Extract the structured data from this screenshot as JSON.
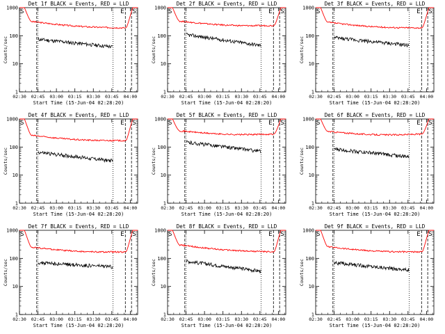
{
  "chart_data": [
    {
      "type": "line",
      "title": "Det 1f BLACK = Events, RED = LLD",
      "xlabel": "Start Time (15-Jun-04 02:28:20)",
      "ylabel": "Counts/sec",
      "yscale": "log",
      "ylim": [
        1,
        1000
      ],
      "xticks": [
        "02:30",
        "02:45",
        "03:00",
        "03:15",
        "03:30",
        "03:45",
        "04:00"
      ],
      "yticks": [
        "1",
        "10",
        "100",
        "1000"
      ],
      "markers": [
        "S",
        "E",
        "S"
      ],
      "red_level": 220,
      "red_start": 320,
      "red_end": 190,
      "black_start": 75,
      "black_end": 40
    },
    {
      "type": "line",
      "title": "Det 2f BLACK = Events, RED = LLD",
      "xlabel": "Start Time (15-Jun-04 02:28:20)",
      "ylabel": "Counts/sec",
      "yscale": "log",
      "ylim": [
        1,
        1000
      ],
      "xticks": [
        "02:30",
        "02:45",
        "03:00",
        "03:15",
        "03:30",
        "03:45",
        "04:00"
      ],
      "yticks": [
        "1",
        "10",
        "100",
        "1000"
      ],
      "markers": [
        "S",
        "E",
        "S"
      ],
      "red_level": 260,
      "red_start": 330,
      "red_end": 230,
      "black_start": 110,
      "black_end": 45
    },
    {
      "type": "line",
      "title": "Det 3f BLACK = Events, RED = LLD",
      "xlabel": "Start Time (15-Jun-04 02:28:20)",
      "ylabel": "Counts/sec",
      "yscale": "log",
      "ylim": [
        1,
        1000
      ],
      "xticks": [
        "02:30",
        "02:45",
        "03:00",
        "03:15",
        "03:30",
        "03:45",
        "04:00"
      ],
      "yticks": [
        "1",
        "10",
        "100",
        "1000"
      ],
      "markers": [
        "S",
        "E",
        "S"
      ],
      "red_level": 220,
      "red_start": 300,
      "red_end": 190,
      "black_start": 85,
      "black_end": 45
    },
    {
      "type": "line",
      "title": "Det 4f BLACK = Events, RED = LLD",
      "xlabel": "Start Time (15-Jun-04 02:28:20)",
      "ylabel": "Counts/sec",
      "yscale": "log",
      "ylim": [
        1,
        1000
      ],
      "xticks": [
        "02:30",
        "02:45",
        "03:00",
        "03:15",
        "03:30",
        "03:45",
        "04:00"
      ],
      "yticks": [
        "1",
        "10",
        "100",
        "1000"
      ],
      "markers": [
        "S",
        "E",
        "S"
      ],
      "red_level": 180,
      "red_start": 260,
      "red_end": 170,
      "black_start": 65,
      "black_end": 32
    },
    {
      "type": "line",
      "title": "Det 5f BLACK = Events, RED = LLD",
      "xlabel": "Start Time (15-Jun-04 02:28:20)",
      "ylabel": "Counts/sec",
      "yscale": "log",
      "ylim": [
        1,
        1000
      ],
      "xticks": [
        "02:30",
        "02:45",
        "03:00",
        "03:15",
        "03:30",
        "03:45",
        "04:00"
      ],
      "yticks": [
        "1",
        "10",
        "100",
        "1000"
      ],
      "markers": [
        "S",
        "E",
        "S"
      ],
      "red_level": 330,
      "red_start": 380,
      "red_end": 290,
      "black_start": 150,
      "black_end": 70
    },
    {
      "type": "line",
      "title": "Det 6f BLACK = Events, RED = LLD",
      "xlabel": "Start Time (15-Jun-04 02:28:20)",
      "ylabel": "Counts/sec",
      "yscale": "log",
      "ylim": [
        1,
        1000
      ],
      "xticks": [
        "02:30",
        "02:45",
        "03:00",
        "03:15",
        "03:30",
        "03:45",
        "04:00"
      ],
      "yticks": [
        "1",
        "10",
        "100",
        "1000"
      ],
      "markers": [
        "S",
        "E",
        "S"
      ],
      "red_level": 300,
      "red_start": 360,
      "red_end": 290,
      "black_start": 85,
      "black_end": 45
    },
    {
      "type": "line",
      "title": "Det 7f BLACK = Events, RED = LLD",
      "xlabel": "Start Time (15-Jun-04 02:28:20)",
      "ylabel": "Counts/sec",
      "yscale": "log",
      "ylim": [
        1,
        1000
      ],
      "xticks": [
        "02:30",
        "02:45",
        "03:00",
        "03:15",
        "03:30",
        "03:45",
        "04:00"
      ],
      "yticks": [
        "1",
        "10",
        "100",
        "1000"
      ],
      "markers": [
        "S",
        "E",
        "S"
      ],
      "red_level": 160,
      "red_start": 250,
      "red_end": 170,
      "black_start": 70,
      "black_end": 50
    },
    {
      "type": "line",
      "title": "Det 8f BLACK = Events, RED = LLD",
      "xlabel": "Start Time (15-Jun-04 02:28:20)",
      "ylabel": "Counts/sec",
      "yscale": "log",
      "ylim": [
        1,
        1000
      ],
      "xticks": [
        "02:30",
        "02:45",
        "03:00",
        "03:15",
        "03:30",
        "03:45",
        "04:00"
      ],
      "yticks": [
        "1",
        "10",
        "100",
        "1000"
      ],
      "markers": [
        "S",
        "E",
        "S"
      ],
      "red_level": 240,
      "red_start": 300,
      "red_end": 170,
      "black_start": 80,
      "black_end": 35
    },
    {
      "type": "line",
      "title": "Det 9f BLACK = Events, RED = LLD",
      "xlabel": "Start Time (15-Jun-04 02:28:20)",
      "ylabel": "Counts/sec",
      "yscale": "log",
      "ylim": [
        1,
        1000
      ],
      "xticks": [
        "02:30",
        "02:45",
        "03:00",
        "03:15",
        "03:30",
        "03:45",
        "04:00"
      ],
      "yticks": [
        "1",
        "10",
        "100",
        "1000"
      ],
      "markers": [
        "S",
        "E",
        "S"
      ],
      "red_level": 190,
      "red_start": 260,
      "red_end": 170,
      "black_start": 70,
      "black_end": 38
    }
  ],
  "colors": {
    "events": "#000000",
    "lld": "#ff0000",
    "axes": "#000000",
    "background": "#ffffff"
  }
}
